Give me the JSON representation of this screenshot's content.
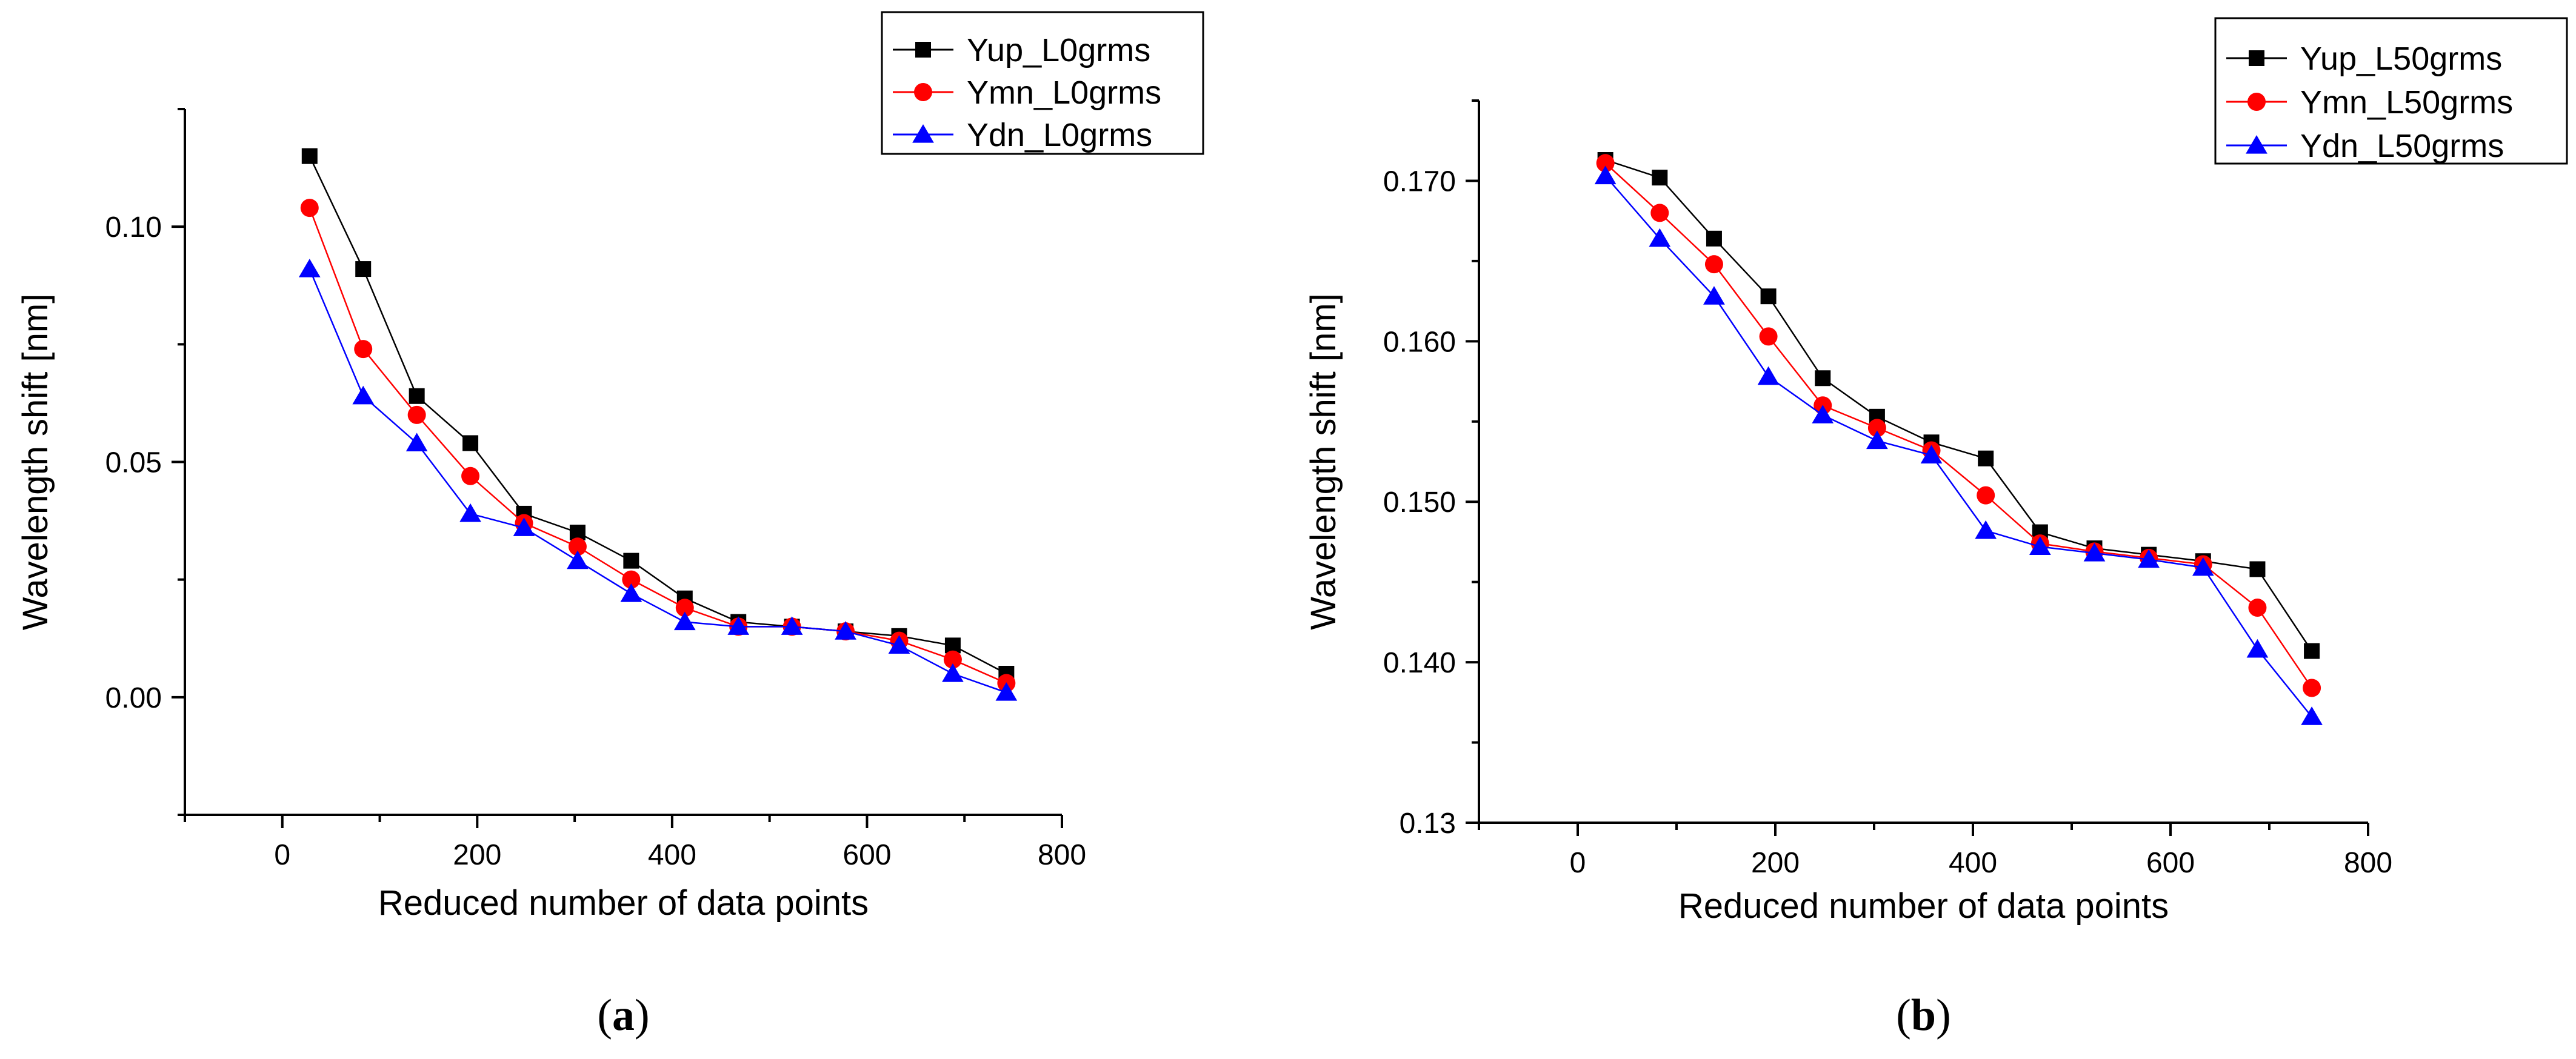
{
  "chart_data": [
    {
      "type": "line",
      "panel_label": "a",
      "xlabel": "Reduced number of data points",
      "ylabel": "Wavelength shift [nm]",
      "xlim": [
        -100,
        800
      ],
      "ylim": [
        -0.025,
        0.125
      ],
      "xticks": [
        0,
        200,
        400,
        600,
        800
      ],
      "yticks": [
        0.0,
        0.05,
        0.1
      ],
      "ytick_labels": [
        "0.00",
        "0.05",
        "0.10"
      ],
      "x": [
        28,
        83,
        138,
        193,
        248,
        303,
        358,
        413,
        468,
        523,
        578,
        633,
        688,
        743
      ],
      "legend_position": "top-right",
      "series": [
        {
          "name": "Yup_L0grms",
          "color": "#000000",
          "marker": "square",
          "values": [
            0.115,
            0.091,
            0.064,
            0.054,
            0.039,
            0.035,
            0.029,
            0.021,
            0.016,
            0.015,
            0.014,
            0.013,
            0.011,
            0.005
          ]
        },
        {
          "name": "Ymn_L0grms",
          "color": "#ff0000",
          "marker": "circle",
          "values": [
            0.104,
            0.074,
            0.06,
            0.047,
            0.037,
            0.032,
            0.025,
            0.019,
            0.015,
            0.015,
            0.014,
            0.012,
            0.008,
            0.003
          ]
        },
        {
          "name": "Ydn_L0grms",
          "color": "#0000ff",
          "marker": "triangle",
          "values": [
            0.091,
            0.064,
            0.054,
            0.039,
            0.036,
            0.029,
            0.022,
            0.016,
            0.015,
            0.015,
            0.014,
            0.011,
            0.005,
            0.001
          ]
        }
      ]
    },
    {
      "type": "line",
      "panel_label": "b",
      "xlabel": "Reduced number of data points",
      "ylabel": "Wavelength shift [nm]",
      "xlim": [
        -100,
        800
      ],
      "ylim": [
        0.13,
        0.175
      ],
      "xticks": [
        0,
        200,
        400,
        600,
        800
      ],
      "yticks": [
        0.13,
        0.14,
        0.15,
        0.16,
        0.17
      ],
      "ytick_labels": [
        "0.13",
        "0.140",
        "0.150",
        "0.160",
        "0.170"
      ],
      "x": [
        28,
        83,
        138,
        193,
        248,
        303,
        358,
        413,
        468,
        523,
        578,
        633,
        688,
        743
      ],
      "legend_position": "top-right",
      "series": [
        {
          "name": "Yup_L50grms",
          "color": "#000000",
          "marker": "square",
          "values": [
            0.1713,
            0.1702,
            0.1664,
            0.1628,
            0.1577,
            0.1553,
            0.1537,
            0.1527,
            0.1481,
            0.1471,
            0.1467,
            0.1463,
            0.1458,
            0.1407
          ]
        },
        {
          "name": "Ymn_L50grms",
          "color": "#ff0000",
          "marker": "circle",
          "values": [
            0.1711,
            0.168,
            0.1648,
            0.1603,
            0.156,
            0.1546,
            0.1532,
            0.1504,
            0.1474,
            0.1469,
            0.1465,
            0.1461,
            0.1434,
            0.1384
          ]
        },
        {
          "name": "Ydn_L50grms",
          "color": "#0000ff",
          "marker": "triangle",
          "values": [
            0.1703,
            0.1664,
            0.1628,
            0.1578,
            0.1554,
            0.1538,
            0.1529,
            0.1482,
            0.1472,
            0.1468,
            0.1464,
            0.1459,
            0.1408,
            0.1366
          ]
        }
      ]
    }
  ]
}
